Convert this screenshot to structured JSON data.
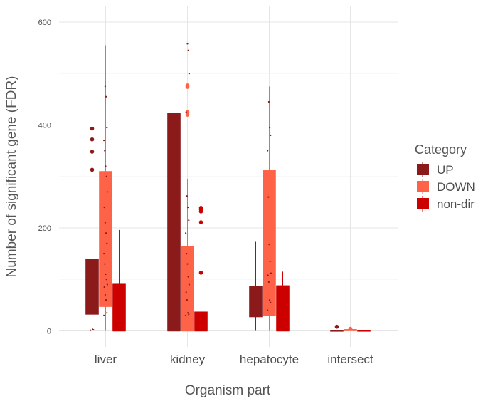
{
  "chart_data": {
    "type": "boxplot",
    "title": "",
    "xlabel": "Organism part",
    "ylabel": "Number of significant gene (FDR)",
    "categories": [
      "liver",
      "kidney",
      "hepatocyte",
      "intersect"
    ],
    "ylim": [
      -50,
      620
    ],
    "yticks": [
      0,
      200,
      400,
      600
    ],
    "grid": true,
    "legend": {
      "title": "Category",
      "position": "right",
      "entries": [
        "UP",
        "DOWN",
        "non-dir"
      ]
    },
    "series": [
      {
        "name": "UP",
        "color": "#8B1A1A",
        "boxes": [
          {
            "category": "liver",
            "whisker_low": 0,
            "q1": 32,
            "median": 60,
            "q3": 140,
            "whisker_high": 208,
            "outliers": [
              313,
              348,
              372,
              393
            ]
          },
          {
            "category": "kidney",
            "whisker_low": 0,
            "q1": 0,
            "median": 0,
            "q3": 423,
            "whisker_high": 560,
            "outliers": []
          },
          {
            "category": "hepatocyte",
            "whisker_low": 0,
            "q1": 27,
            "median": 45,
            "q3": 87,
            "whisker_high": 173,
            "outliers": []
          },
          {
            "category": "intersect",
            "whisker_low": 0,
            "q1": 0,
            "median": 0,
            "q3": 1,
            "whisker_high": 2,
            "outliers": [
              8
            ]
          }
        ]
      },
      {
        "name": "DOWN",
        "color": "#FF6347",
        "boxes": [
          {
            "category": "liver",
            "whisker_low": 0,
            "q1": 47,
            "median": 90,
            "q3": 310,
            "whisker_high": 555,
            "outliers": []
          },
          {
            "category": "kidney",
            "whisker_low": 0,
            "q1": 0,
            "median": 0,
            "q3": 164,
            "whisker_high": 295,
            "outliers": [
              420,
              425,
              474,
              477
            ]
          },
          {
            "category": "hepatocyte",
            "whisker_low": 0,
            "q1": 30,
            "median": 70,
            "q3": 312,
            "whisker_high": 475,
            "outliers": []
          },
          {
            "category": "intersect",
            "whisker_low": 0,
            "q1": 0,
            "median": 1,
            "q3": 3,
            "whisker_high": 4,
            "outliers": [
              4
            ]
          }
        ]
      },
      {
        "name": "non-dir",
        "color": "#CD0000",
        "boxes": [
          {
            "category": "liver",
            "whisker_low": 0,
            "q1": 0,
            "median": 0,
            "q3": 91,
            "whisker_high": 196,
            "outliers": []
          },
          {
            "category": "kidney",
            "whisker_low": 0,
            "q1": 0,
            "median": 0,
            "q3": 37,
            "whisker_high": 88,
            "outliers": [
              113,
              211,
              232,
              236,
              239
            ]
          },
          {
            "category": "hepatocyte",
            "whisker_low": 0,
            "q1": 0,
            "median": 0,
            "q3": 88,
            "whisker_high": 115,
            "outliers": []
          },
          {
            "category": "intersect",
            "whisker_low": 0,
            "q1": 0,
            "median": 0,
            "q3": 1,
            "whisker_high": 2,
            "outliers": []
          }
        ]
      }
    ],
    "overlay_points": [
      {
        "category": "liver",
        "series": "UP",
        "values": [
          1,
          2,
          3
        ]
      },
      {
        "category": "liver",
        "series": "DOWN",
        "values": [
          30,
          35,
          60,
          70,
          85,
          90,
          100,
          110,
          130,
          150,
          170,
          190,
          210,
          240,
          270,
          300,
          320,
          350,
          370,
          395,
          455,
          475
        ]
      },
      {
        "category": "kidney",
        "series": "DOWN",
        "values": [
          30,
          32,
          35,
          60,
          75,
          90,
          105,
          130,
          150,
          190,
          215,
          240,
          262,
          425,
          500,
          545,
          558
        ]
      },
      {
        "category": "hepatocyte",
        "series": "DOWN",
        "values": [
          40,
          55,
          60,
          95,
          108,
          112,
          135,
          168,
          260,
          350,
          380,
          395,
          445
        ]
      }
    ]
  }
}
